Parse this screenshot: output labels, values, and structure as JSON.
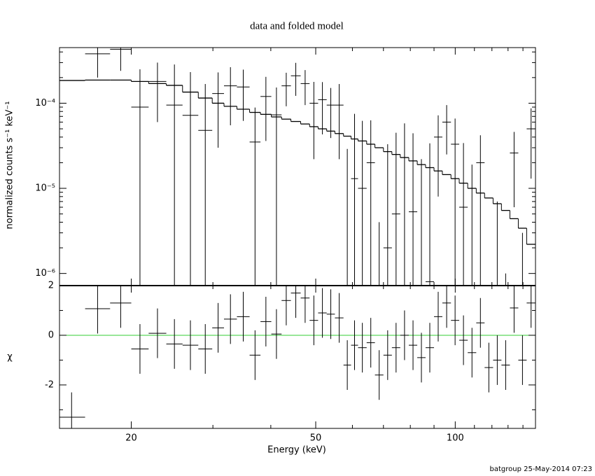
{
  "chart_data": {
    "type": "spectrum",
    "title": "data and folded model",
    "xlabel": "Energy (keV)",
    "footer": "batgroup 25-May-2014 07:23",
    "log_x": true,
    "xlim": [
      14,
      149
    ],
    "xticks": [
      20,
      50,
      100
    ],
    "xminor_ticks": [
      30,
      40,
      60,
      70,
      80,
      90,
      110,
      120,
      130,
      140
    ],
    "bins": [
      13.9,
      15.9,
      18.0,
      20.0,
      21.8,
      23.8,
      25.8,
      27.9,
      29.9,
      31.7,
      33.8,
      36.0,
      38.0,
      40.1,
      42.2,
      44.2,
      46.4,
      48.5,
      50.6,
      52.8,
      55.0,
      57.4,
      59.6,
      61.7,
      64.4,
      67.1,
      70.0,
      73.0,
      76.1,
      79.4,
      82.8,
      86.3,
      90.0,
      93.8,
      97.9,
      102,
      106.4,
      111,
      115.7,
      120.7,
      125.8,
      131.2,
      136.8,
      142.6,
      149
    ],
    "top": {
      "ylabel": "normalized counts s⁻¹ keV⁻¹",
      "log_y": true,
      "ylim": [
        7.2e-07,
        0.00045
      ],
      "yticks": [
        {
          "value": 1e-06,
          "label": "10⁻⁶"
        },
        {
          "value": 1e-05,
          "label": "10⁻⁵"
        },
        {
          "value": 0.0001,
          "label": "10⁻⁴"
        }
      ],
      "yminor_ticks": [
        2e-06,
        3e-06,
        4e-06,
        5e-06,
        6e-06,
        7e-06,
        8e-06,
        9e-06,
        2e-05,
        3e-05,
        4e-05,
        5e-05,
        6e-05,
        7e-05,
        8e-05,
        9e-05,
        0.0002,
        0.0003,
        0.0004
      ],
      "data_color": "#000000",
      "model_color": "#000000",
      "values": [
        -0.00021,
        0.00038,
        0.00043,
        9e-05,
        0.00018,
        9.5e-05,
        7.2e-05,
        4.8e-05,
        0.00013,
        0.00016,
        0.000155,
        3.5e-05,
        0.00012,
        7.3e-05,
        0.00016,
        0.00021,
        0.00017,
        0.0001,
        0.00011,
        9.5e-05,
        9.5e-05,
        -3e-05,
        1.3e-05,
        1e-05,
        2e-05,
        -4e-05,
        2e-06,
        5e-06,
        2.3e-05,
        5.3e-06,
        -1.2e-05,
        8e-07,
        4e-05,
        6e-05,
        3.3e-05,
        6e-06,
        -1.2e-05,
        2e-05,
        -2.5e-05,
        -1.9e-05,
        -2e-05,
        2.6e-05,
        -1.8e-05,
        5e-05
      ],
      "errors": [
        0.00012,
        0.00018,
        0.00019,
        0.00016,
        0.00012,
        0.00019,
        0.00016,
        0.00012,
        0.0001,
        0.000105,
        9.3e-05,
        5.4e-05,
        8.4e-05,
        8e-05,
        6.8e-05,
        8.8e-05,
        7.5e-05,
        7.8e-05,
        6.7e-05,
        5.6e-05,
        7.3e-05,
        5.9e-05,
        6.2e-05,
        5.2e-05,
        4.3e-05,
        4.4e-05,
        3.1e-05,
        4e-05,
        3.5e-05,
        3.9e-05,
        3.4e-05,
        3.3e-05,
        3.2e-05,
        3.5e-05,
        3.3e-05,
        2.8e-05,
        3.1e-05,
        2.2e-05,
        2.5e-05,
        2.6e-05,
        2.1e-05,
        2e-05,
        2.1e-05,
        3.7e-05
      ],
      "model": [
        0.000185,
        0.000187,
        0.000187,
        0.00018,
        0.00017,
        0.000162,
        0.000135,
        0.000115,
        0.0001,
        9.2e-05,
        8.5e-05,
        7.8e-05,
        7.4e-05,
        6.9e-05,
        6.5e-05,
        6.1e-05,
        5.7e-05,
        5.3e-05,
        5e-05,
        4.7e-05,
        4.4e-05,
        4.1e-05,
        3.8e-05,
        3.6e-05,
        3.3e-05,
        3e-05,
        2.7e-05,
        2.5e-05,
        2.3e-05,
        2.1e-05,
        1.9e-05,
        1.75e-05,
        1.6e-05,
        1.45e-05,
        1.3e-05,
        1.15e-05,
        1e-05,
        8.8e-06,
        7.7e-06,
        6.6e-06,
        5.5e-06,
        4.4e-06,
        3.4e-06,
        2.2e-06
      ]
    },
    "bottom": {
      "ylabel": "χ",
      "ylim": [
        -3.75,
        2
      ],
      "yticks": [
        -2,
        0,
        2
      ],
      "yminor_ticks": [
        -3,
        -1,
        1
      ],
      "zero_color": "#33cc33",
      "values": [
        -3.3,
        1.07,
        1.3,
        -0.55,
        0.08,
        -0.35,
        -0.4,
        -0.55,
        0.3,
        0.65,
        0.75,
        -0.8,
        0.55,
        0.05,
        1.4,
        1.7,
        1.5,
        0.6,
        0.9,
        0.85,
        0.7,
        -1.2,
        -0.4,
        -0.5,
        -0.3,
        -1.6,
        -0.8,
        -0.5,
        0.0,
        -0.4,
        -0.9,
        -0.5,
        0.75,
        1.3,
        0.6,
        -0.2,
        -0.7,
        0.5,
        -1.3,
        -1.0,
        -1.2,
        1.1,
        -1.0,
        1.3
      ],
      "errors": [
        1,
        1,
        1,
        1,
        1,
        1,
        1,
        1,
        1,
        1,
        1,
        1,
        1,
        1,
        1,
        1,
        1,
        1,
        1,
        1,
        1,
        1,
        1,
        1,
        1,
        1,
        1,
        1,
        1,
        1,
        1,
        1,
        1,
        1,
        1,
        1,
        1,
        1,
        1,
        1,
        1,
        1,
        1,
        1
      ]
    }
  }
}
